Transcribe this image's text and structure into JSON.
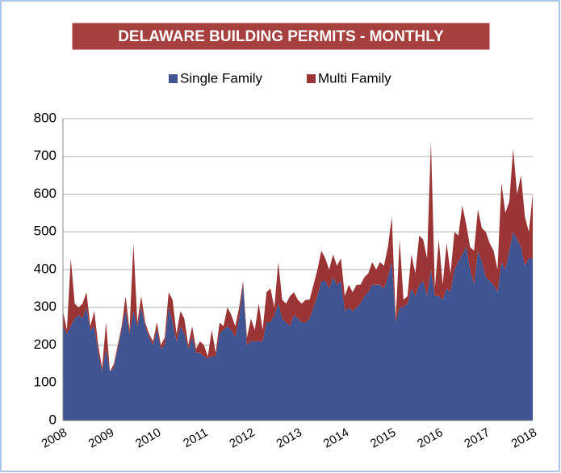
{
  "chart_data": {
    "type": "stacked_area",
    "title": "DELAWARE BUILDING PERMITS - MONTHLY",
    "categories": [
      "2008",
      null,
      null,
      null,
      null,
      null,
      null,
      null,
      null,
      null,
      null,
      null,
      "2009",
      null,
      null,
      null,
      null,
      null,
      null,
      null,
      null,
      null,
      null,
      null,
      "2010",
      null,
      null,
      null,
      null,
      null,
      null,
      null,
      null,
      null,
      null,
      null,
      "2011",
      null,
      null,
      null,
      null,
      null,
      null,
      null,
      null,
      null,
      null,
      null,
      "2012",
      null,
      null,
      null,
      null,
      null,
      null,
      null,
      null,
      null,
      null,
      null,
      "2013",
      null,
      null,
      null,
      null,
      null,
      null,
      null,
      null,
      null,
      null,
      null,
      "2014",
      null,
      null,
      null,
      null,
      null,
      null,
      null,
      null,
      null,
      null,
      null,
      "2015",
      null,
      null,
      null,
      null,
      null,
      null,
      null,
      null,
      null,
      null,
      null,
      "2016",
      null,
      null,
      null,
      null,
      null,
      null,
      null,
      null,
      null,
      null,
      null,
      "2017",
      null,
      null,
      null,
      null,
      null,
      null,
      null,
      null,
      null,
      null,
      null,
      "2018"
    ],
    "series": [
      {
        "name": "Single Family",
        "color": "#3f5490",
        "values": [
          250,
          230,
          250,
          270,
          280,
          270,
          300,
          240,
          250,
          180,
          130,
          190,
          130,
          140,
          190,
          240,
          290,
          230,
          290,
          250,
          300,
          250,
          220,
          200,
          240,
          190,
          200,
          300,
          260,
          210,
          250,
          230,
          190,
          220,
          180,
          180,
          170,
          165,
          170,
          170,
          230,
          240,
          250,
          240,
          220,
          270,
          360,
          200,
          210,
          210,
          210,
          210,
          260,
          260,
          280,
          310,
          270,
          260,
          250,
          280,
          270,
          260,
          260,
          270,
          300,
          330,
          370,
          370,
          350,
          380,
          360,
          370,
          290,
          300,
          290,
          300,
          310,
          330,
          340,
          360,
          360,
          360,
          350,
          380,
          420,
          260,
          300,
          300,
          310,
          350,
          330,
          360,
          370,
          330,
          400,
          330,
          330,
          320,
          350,
          340,
          400,
          420,
          440,
          460,
          400,
          360,
          450,
          420,
          380,
          370,
          360,
          340,
          420,
          400,
          450,
          500,
          480,
          460,
          410,
          430,
          430
        ]
      },
      {
        "name": "Multi Family",
        "color": "#9b3535",
        "values": [
          40,
          10,
          180,
          40,
          20,
          40,
          40,
          10,
          40,
          20,
          10,
          70,
          0,
          10,
          10,
          10,
          40,
          10,
          180,
          10,
          30,
          10,
          10,
          10,
          20,
          10,
          20,
          40,
          60,
          20,
          40,
          40,
          10,
          30,
          10,
          30,
          30,
          5,
          70,
          10,
          30,
          10,
          50,
          40,
          30,
          30,
          10,
          20,
          60,
          30,
          100,
          30,
          80,
          90,
          20,
          110,
          50,
          50,
          80,
          60,
          50,
          50,
          60,
          50,
          60,
          70,
          80,
          60,
          50,
          60,
          50,
          60,
          40,
          60,
          50,
          60,
          50,
          50,
          50,
          60,
          40,
          60,
          60,
          80,
          120,
          10,
          180,
          20,
          20,
          90,
          60,
          130,
          110,
          100,
          340,
          20,
          150,
          40,
          120,
          50,
          100,
          70,
          130,
          60,
          60,
          90,
          110,
          90,
          120,
          100,
          90,
          60,
          210,
          150,
          130,
          220,
          120,
          190,
          130,
          70,
          170
        ]
      }
    ],
    "ylim": [
      0,
      800
    ],
    "yticks": [
      0,
      100,
      200,
      300,
      400,
      500,
      600,
      700,
      800
    ],
    "grid": true,
    "legend": "top"
  }
}
